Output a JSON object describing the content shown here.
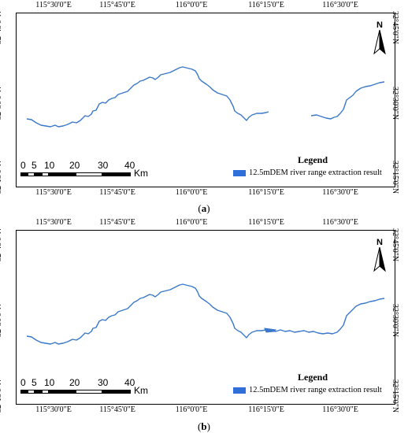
{
  "colors": {
    "river": "#3a78c9",
    "legend_swatch": "#2e6fd9",
    "frame": "#000000"
  },
  "longitudes": [
    "115°30'0\"E",
    "115°45'0\"E",
    "116°0'0\"E",
    "116°15'0\"E",
    "116°30'0\"E"
  ],
  "latitudes": [
    "32°45'0\"N",
    "32°30'0\"N",
    "32°15'0\"N"
  ],
  "north_label": "N",
  "north_icon": "north-arrow-icon",
  "scale": {
    "ticks": [
      "0",
      "5",
      "10",
      "20",
      "30",
      "40"
    ],
    "unit": "Km"
  },
  "panels": [
    {
      "id": "a",
      "caption_open": "(",
      "caption_letter": "a",
      "caption_close": ")",
      "legend_title": "Legend",
      "legend_item": "12.5mDEM river range extraction result"
    },
    {
      "id": "b",
      "caption_open": "(",
      "caption_letter": "b",
      "caption_close": ")",
      "legend_title": "Legend",
      "legend_item": "12.5mDEM river range extraction result"
    }
  ]
}
